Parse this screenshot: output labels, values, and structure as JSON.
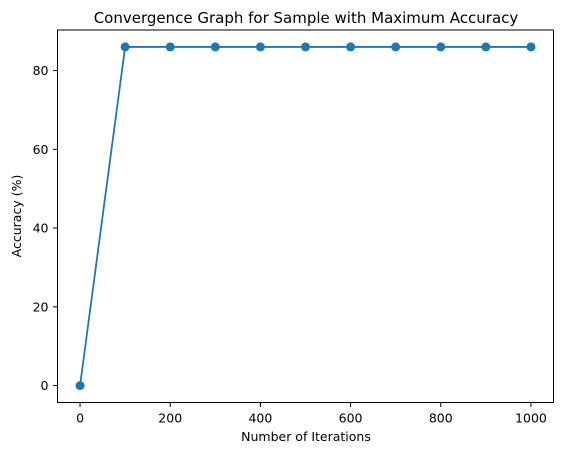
{
  "chart_data": {
    "type": "line",
    "title": "Convergence Graph for Sample with Maximum Accuracy",
    "xlabel": "Number of Iterations",
    "ylabel": "Accuracy (%)",
    "x": [
      0,
      100,
      200,
      300,
      400,
      500,
      600,
      700,
      800,
      900,
      1000
    ],
    "series": [
      {
        "values": [
          0,
          86,
          86,
          86,
          86,
          86,
          86,
          86,
          86,
          86,
          86
        ],
        "color": "#1f77b4",
        "marker": "circle"
      }
    ],
    "xlim": [
      -50,
      1050
    ],
    "ylim": [
      -4.3,
      90.3
    ],
    "xticks": [
      0,
      200,
      400,
      600,
      800,
      1000
    ],
    "yticks": [
      0,
      20,
      40,
      60,
      80
    ],
    "grid": false,
    "legend": "none"
  }
}
